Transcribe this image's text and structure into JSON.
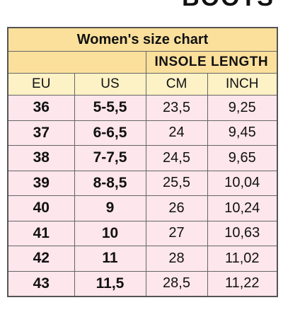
{
  "header": {
    "title": "BOOTS"
  },
  "table": {
    "title": "Women's size chart",
    "group_header": "INSOLE LENGTH",
    "columns": [
      "EU",
      "US",
      "CM",
      "INCH"
    ],
    "rows": [
      [
        "36",
        "5-5,5",
        "23,5",
        "9,25"
      ],
      [
        "37",
        "6-6,5",
        "24",
        "9,45"
      ],
      [
        "38",
        "7-7,5",
        "24,5",
        "9,65"
      ],
      [
        "39",
        "8-8,5",
        "25,5",
        "10,04"
      ],
      [
        "40",
        "9",
        "26",
        "10,24"
      ],
      [
        "41",
        "10",
        "27",
        "10,63"
      ],
      [
        "42",
        "11",
        "28",
        "11,02"
      ],
      [
        "43",
        "11,5",
        "28,5",
        "11,22"
      ]
    ]
  }
}
